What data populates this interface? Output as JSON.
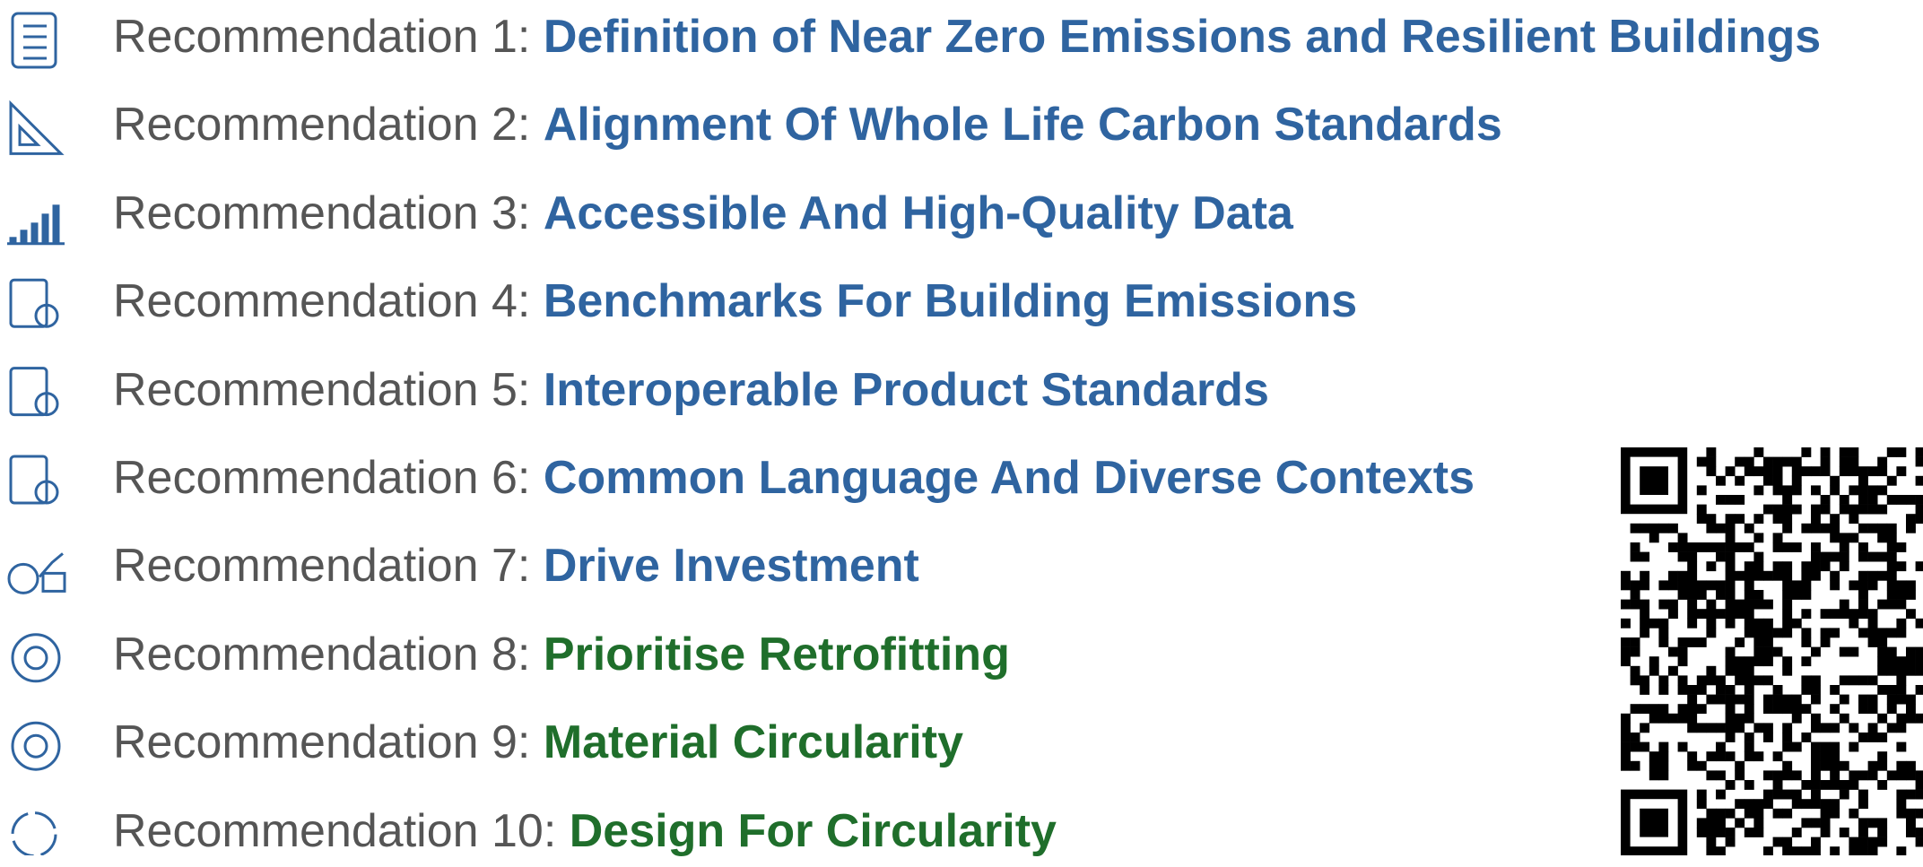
{
  "items": [
    {
      "label": "Recommendation 1:",
      "title": "Definition of Near Zero Emissions and Resilient Buildings",
      "color": "#2f64a0"
    },
    {
      "label": "Recommendation 2:",
      "title": "Alignment Of Whole Life Carbon Standards",
      "color": "#2f64a0"
    },
    {
      "label": "Recommendation 3:",
      "title": "Accessible And High-Quality Data",
      "color": "#2f64a0"
    },
    {
      "label": "Recommendation 4:",
      "title": "Benchmarks For Building Emissions",
      "color": "#2f64a0"
    },
    {
      "label": "Recommendation 5:",
      "title": "Interoperable Product Standards",
      "color": "#2f64a0"
    },
    {
      "label": "Recommendation 6:",
      "title": "Common Language And Diverse Contexts",
      "color": "#2f64a0"
    },
    {
      "label": "Recommendation 7:",
      "title": "Drive Investment",
      "color": "#2f64a0"
    },
    {
      "label": "Recommendation 8:",
      "title": "Prioritise Retrofitting",
      "color": "#1f6e2b"
    },
    {
      "label": "Recommendation 9:",
      "title": "Material Circularity",
      "color": "#1f6e2b"
    },
    {
      "label": "Recommendation 10:",
      "title": "Design For Circularity",
      "color": "#1f6e2b"
    }
  ]
}
